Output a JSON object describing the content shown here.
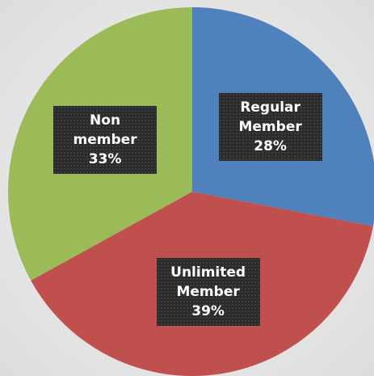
{
  "chart_data": {
    "type": "pie",
    "categories": [
      "Regular Member",
      "Unlimited Member",
      "Non member"
    ],
    "values": [
      28,
      39,
      33
    ],
    "value_labels": [
      "28%",
      "39%",
      "33%"
    ],
    "colors": [
      "#4f81bd",
      "#c0504d",
      "#9bbb59"
    ]
  }
}
